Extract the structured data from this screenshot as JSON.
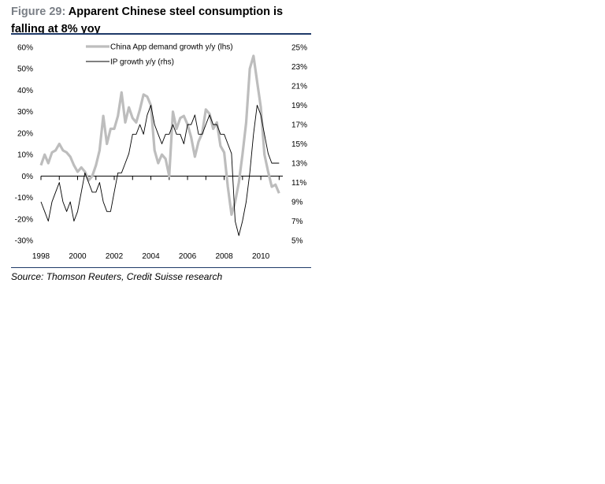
{
  "figure": {
    "label": "Figure 29:",
    "title": "Apparent Chinese steel consumption is falling at 8% yoy",
    "source": "Source: Thomson Reuters, Credit Suisse research"
  },
  "colors": {
    "demand": "#bdbdbd",
    "ip": "#000000",
    "rule": "#1f3a68"
  },
  "chart_data": {
    "type": "line",
    "x_ticks": [
      "1998",
      "2000",
      "2002",
      "2004",
      "2006",
      "2008",
      "2010"
    ],
    "x_tick_values": [
      1998,
      2000,
      2002,
      2004,
      2006,
      2008,
      2010
    ],
    "xlim": [
      1998,
      2011.2
    ],
    "y_left": {
      "ticks": [
        "60%",
        "50%",
        "40%",
        "30%",
        "20%",
        "10%",
        "0%",
        "-10%",
        "-20%",
        "-30%"
      ],
      "lim": [
        -30,
        60
      ]
    },
    "y_right": {
      "ticks": [
        "25%",
        "23%",
        "21%",
        "19%",
        "17%",
        "15%",
        "13%",
        "11%",
        "9%",
        "7%",
        "5%"
      ],
      "lim": [
        5,
        25
      ]
    },
    "series": [
      {
        "name": "China App demand growth y/y (lhs)",
        "axis": "left",
        "x": [
          1998.0,
          1998.2,
          1998.4,
          1998.6,
          1998.8,
          1999.0,
          1999.2,
          1999.4,
          1999.6,
          1999.8,
          2000.0,
          2000.2,
          2000.4,
          2000.6,
          2000.8,
          2001.0,
          2001.2,
          2001.4,
          2001.6,
          2001.8,
          2002.0,
          2002.2,
          2002.4,
          2002.6,
          2002.8,
          2003.0,
          2003.2,
          2003.4,
          2003.6,
          2003.8,
          2004.0,
          2004.2,
          2004.4,
          2004.6,
          2004.8,
          2005.0,
          2005.2,
          2005.4,
          2005.6,
          2005.8,
          2006.0,
          2006.2,
          2006.4,
          2006.6,
          2006.8,
          2007.0,
          2007.2,
          2007.4,
          2007.6,
          2007.8,
          2008.0,
          2008.2,
          2008.4,
          2008.6,
          2008.8,
          2009.0,
          2009.2,
          2009.4,
          2009.6,
          2009.8,
          2010.0,
          2010.2,
          2010.4,
          2010.6,
          2010.8,
          2011.0
        ],
        "values": [
          5,
          10,
          6,
          11,
          12,
          15,
          12,
          11,
          9,
          5,
          2,
          4,
          2,
          -2,
          0,
          5,
          12,
          28,
          15,
          22,
          22,
          28,
          39,
          25,
          32,
          27,
          25,
          31,
          38,
          37,
          33,
          12,
          6,
          10,
          8,
          0,
          30,
          22,
          27,
          28,
          24,
          18,
          9,
          16,
          20,
          31,
          29,
          22,
          25,
          14,
          11,
          -5,
          -18,
          -12,
          -3,
          10,
          25,
          50,
          56,
          44,
          32,
          10,
          2,
          -5,
          -4,
          -8
        ]
      },
      {
        "name": "IP growth y/y (rhs)",
        "axis": "right",
        "x": [
          1998.0,
          1998.2,
          1998.4,
          1998.6,
          1998.8,
          1999.0,
          1999.2,
          1999.4,
          1999.6,
          1999.8,
          2000.0,
          2000.2,
          2000.4,
          2000.6,
          2000.8,
          2001.0,
          2001.2,
          2001.4,
          2001.6,
          2001.8,
          2002.0,
          2002.2,
          2002.4,
          2002.6,
          2002.8,
          2003.0,
          2003.2,
          2003.4,
          2003.6,
          2003.8,
          2004.0,
          2004.2,
          2004.4,
          2004.6,
          2004.8,
          2005.0,
          2005.2,
          2005.4,
          2005.6,
          2005.8,
          2006.0,
          2006.2,
          2006.4,
          2006.6,
          2006.8,
          2007.0,
          2007.2,
          2007.4,
          2007.6,
          2007.8,
          2008.0,
          2008.2,
          2008.4,
          2008.6,
          2008.8,
          2009.0,
          2009.2,
          2009.4,
          2009.6,
          2009.8,
          2010.0,
          2010.2,
          2010.4,
          2010.6,
          2010.8,
          2011.0
        ],
        "values": [
          9,
          8,
          7,
          9,
          10,
          11,
          9,
          8,
          9,
          7,
          8,
          10,
          12,
          11,
          10,
          10,
          11,
          9,
          8,
          8,
          10,
          12,
          12,
          13,
          14,
          16,
          16,
          17,
          16,
          18,
          19,
          17,
          16,
          15,
          16,
          16,
          17,
          16,
          16,
          15,
          17,
          17,
          18,
          16,
          16,
          17,
          18,
          17,
          17,
          16,
          16,
          15,
          14,
          7,
          5.5,
          7,
          9,
          12,
          16,
          19,
          18,
          16,
          14,
          13,
          13,
          13
        ]
      }
    ]
  }
}
